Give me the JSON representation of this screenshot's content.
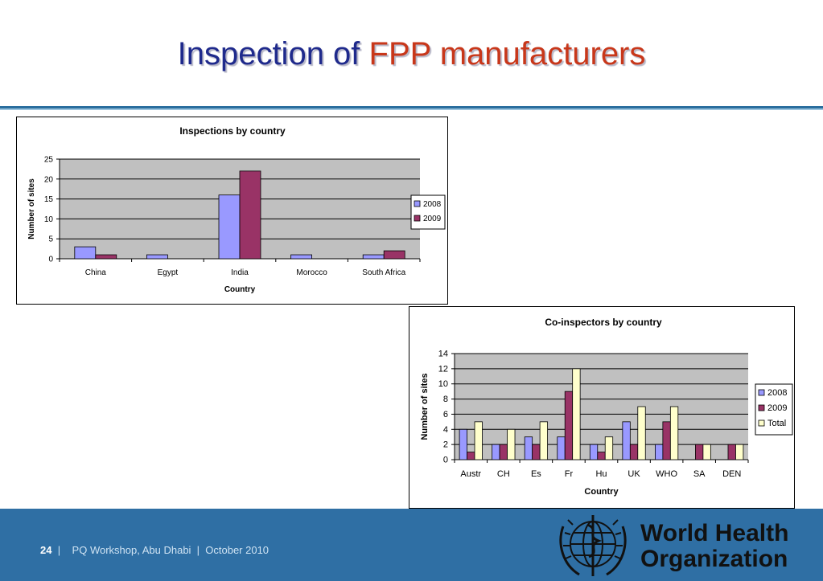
{
  "slide": {
    "title_part1": "Inspection of ",
    "title_part2": "FPP manufacturers"
  },
  "footer": {
    "page_number": "24",
    "separator": "|",
    "text": "PQ Workshop, Abu Dhabi  |  October 2010",
    "logo_line1": "World Health",
    "logo_line2": "Organization"
  },
  "colors": {
    "series_2008": "#9999ff",
    "series_2009": "#993366",
    "series_total": "#ffffcc",
    "plot_bg": "#c0c0c0",
    "title_blue": "#1f2a8c",
    "title_red": "#c8371a",
    "footer_bg": "#2f6fa4"
  },
  "chart_data": [
    {
      "type": "bar",
      "title": "Inspections by country",
      "xlabel": "Country",
      "ylabel": "Number of sites",
      "ylim": [
        0,
        25
      ],
      "yticks": [
        0,
        5,
        10,
        15,
        20,
        25
      ],
      "categories": [
        "China",
        "Egypt",
        "India",
        "Morocco",
        "South Africa"
      ],
      "series": [
        {
          "name": "2008",
          "values": [
            3,
            1,
            16,
            1,
            1
          ]
        },
        {
          "name": "2009",
          "values": [
            1,
            0,
            22,
            0,
            2
          ]
        }
      ],
      "grid": true,
      "legend": "right"
    },
    {
      "type": "bar",
      "title": "Co-inspectors by country",
      "xlabel": "Country",
      "ylabel": "Number of sites",
      "ylim": [
        0,
        14
      ],
      "yticks": [
        0,
        2,
        4,
        6,
        8,
        10,
        12,
        14
      ],
      "categories": [
        "Austr",
        "CH",
        "Es",
        "Fr",
        "Hu",
        "UK",
        "WHO",
        "SA",
        "DEN"
      ],
      "series": [
        {
          "name": "2008",
          "values": [
            4,
            2,
            3,
            3,
            2,
            5,
            2,
            0,
            0
          ]
        },
        {
          "name": "2009",
          "values": [
            1,
            2,
            2,
            9,
            1,
            2,
            5,
            2,
            2
          ]
        },
        {
          "name": "Total",
          "values": [
            5,
            4,
            5,
            12,
            3,
            7,
            7,
            2,
            2
          ]
        }
      ],
      "grid": true,
      "legend": "right"
    }
  ]
}
